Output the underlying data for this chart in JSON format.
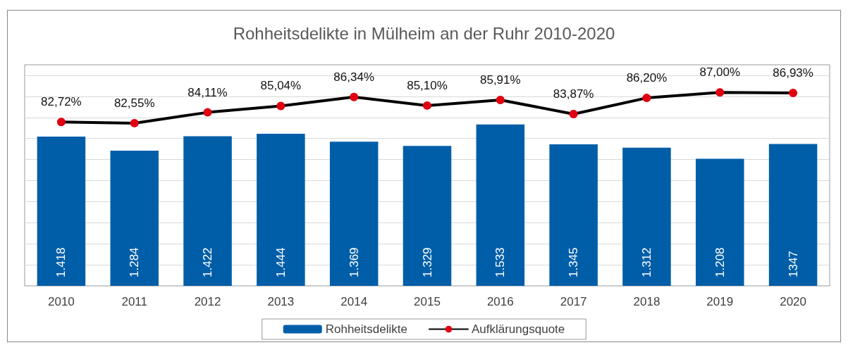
{
  "chart_data": {
    "type": "bar",
    "title": "Rohheitsdelikte in Mülheim an der Ruhr 2010-2020",
    "categories": [
      "2010",
      "2011",
      "2012",
      "2013",
      "2014",
      "2015",
      "2016",
      "2017",
      "2018",
      "2019",
      "2020"
    ],
    "series": [
      {
        "name": "Rohheitsdelikte",
        "color": "#005ea8",
        "values": [
          1418,
          1284,
          1422,
          1444,
          1369,
          1329,
          1533,
          1345,
          1312,
          1208,
          1347
        ],
        "value_labels": [
          "1.418",
          "1.284",
          "1.422",
          "1.444",
          "1.369",
          "1.329",
          "1.533",
          "1.345",
          "1.312",
          "1.208",
          "1347"
        ]
      },
      {
        "name": "Aufklärungsquote",
        "type": "line",
        "axis": "y2",
        "color": "#000000",
        "colors": [
          "#e00010",
          "#e00010",
          "#e00010",
          "#e00010",
          "#e00010",
          "#e00010",
          "#e00010",
          "#e00010",
          "#e00010",
          "#e00010",
          "#e00010"
        ],
        "values": [
          82.72,
          82.55,
          84.11,
          85.04,
          86.34,
          85.1,
          85.91,
          83.87,
          86.2,
          87.0,
          86.93
        ],
        "value_labels": [
          "82,72%",
          "82,55%",
          "84,11%",
          "85,04%",
          "86,34%",
          "85,10%",
          "85,91%",
          "83,87%",
          "86,20%",
          "87,00%",
          "86,93%"
        ]
      }
    ],
    "ylim": [
      0,
      2100
    ],
    "yticks": [
      {
        "value": 0,
        "label": null
      },
      {
        "value": 200,
        "label": null
      },
      {
        "value": 400,
        "label": null
      },
      {
        "value": 600,
        "label": null
      },
      {
        "value": 800,
        "label": null
      },
      {
        "value": 1000,
        "label": null
      },
      {
        "value": 1200,
        "label": null
      },
      {
        "value": 1400,
        "label": null
      },
      {
        "value": 1600,
        "label": null
      },
      {
        "value": 1800,
        "label": null
      },
      {
        "value": 2000,
        "label": null
      }
    ],
    "y2lim": [
      59,
      91
    ],
    "grid": "y",
    "legend": "bottom",
    "marker": "circle",
    "line_style": "solid",
    "tick_labels": "x"
  }
}
